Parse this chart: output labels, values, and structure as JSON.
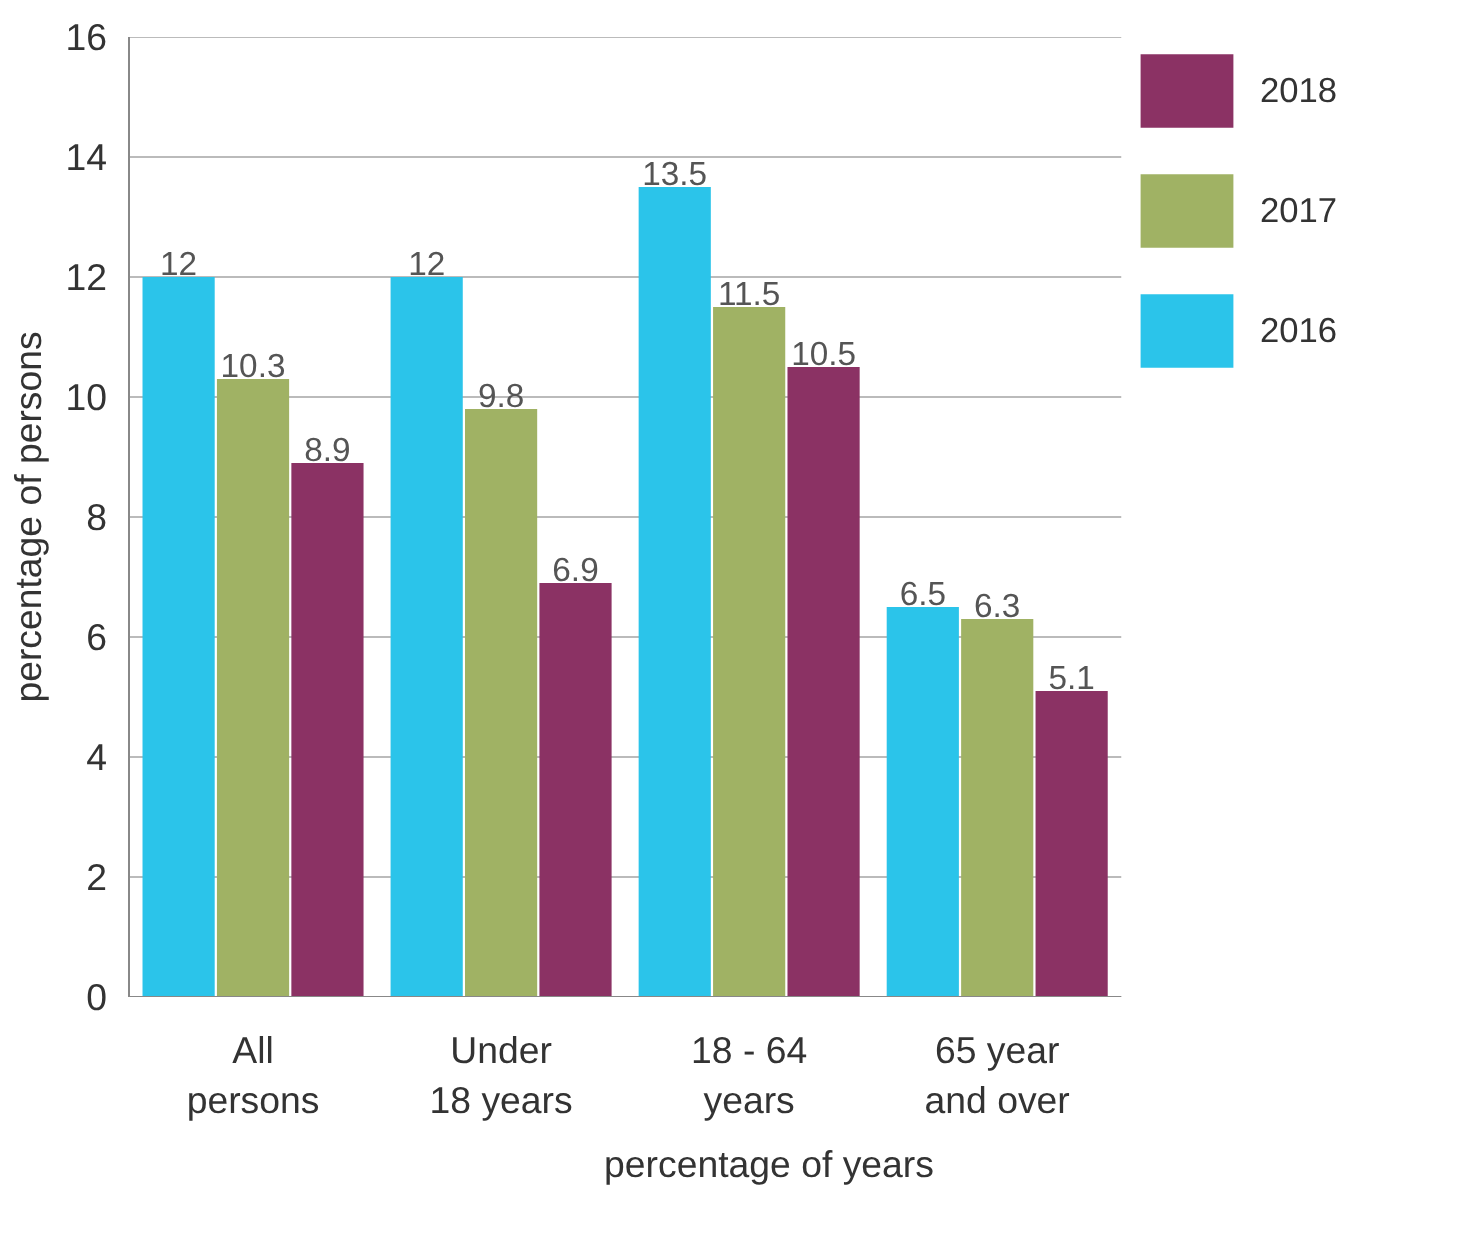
{
  "chart_data": {
    "type": "bar",
    "xlabel": "percentage of years",
    "ylabel": "percentage of persons",
    "categories": [
      "All\npersons",
      "Under\n18 years",
      "18 - 64\nyears",
      "65 year\nand over"
    ],
    "series": [
      {
        "name": "2016",
        "color": "#2bc4ea",
        "values": [
          12,
          12,
          13.5,
          6.5
        ]
      },
      {
        "name": "2017",
        "color": "#a0b264",
        "values": [
          10.3,
          9.8,
          11.5,
          6.3
        ]
      },
      {
        "name": "2018",
        "color": "#8b3264",
        "values": [
          8.9,
          6.9,
          10.5,
          5.1
        ]
      }
    ],
    "ylim": [
      0,
      16
    ],
    "yticks": [
      0,
      2,
      4,
      6,
      8,
      10,
      12,
      14,
      16
    ],
    "grid": "y",
    "legend": "right",
    "data_labels": true
  }
}
